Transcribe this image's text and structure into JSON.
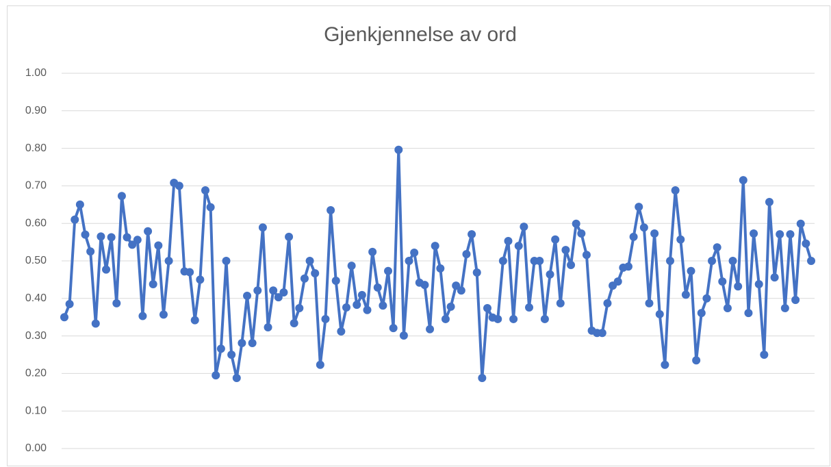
{
  "chart_data": {
    "type": "line",
    "title": "Gjenkjennelse av ord",
    "categories": [
      null,
      null,
      null,
      null,
      null,
      null,
      null,
      null,
      null,
      null,
      null,
      null,
      null,
      null,
      null,
      null,
      null,
      null,
      null,
      null,
      null,
      null,
      null,
      null,
      null,
      null,
      null,
      null,
      null,
      null,
      null,
      null,
      null,
      null,
      null,
      null,
      null,
      null,
      null,
      null,
      null,
      null,
      null,
      null,
      null,
      null,
      null,
      null,
      null,
      null,
      null,
      null,
      null,
      null,
      null,
      null,
      null,
      null,
      null,
      null,
      null,
      null,
      null,
      null,
      null,
      null,
      null,
      null,
      null,
      null,
      null,
      null,
      null,
      null,
      null,
      null,
      null,
      null,
      null,
      null,
      null,
      null,
      null,
      null,
      null,
      null,
      null,
      null,
      null,
      null,
      null,
      null,
      null,
      null,
      null,
      null,
      null,
      null,
      null,
      null,
      null,
      null,
      null,
      null,
      null,
      null,
      null,
      null,
      null,
      null,
      null,
      null,
      null,
      null,
      null,
      null,
      null,
      null,
      null,
      null,
      null,
      null,
      null,
      null,
      null,
      null,
      null,
      null,
      null,
      null,
      null,
      null,
      null,
      null,
      null,
      null,
      null,
      null,
      null,
      null,
      null,
      null,
      null,
      null
    ],
    "values": [
      0.35,
      0.385,
      0.61,
      0.65,
      0.57,
      0.525,
      0.333,
      0.565,
      0.477,
      0.563,
      0.387,
      0.673,
      0.563,
      0.543,
      0.556,
      0.353,
      0.579,
      0.438,
      0.541,
      0.357,
      0.5,
      0.708,
      0.7,
      0.472,
      0.47,
      0.342,
      0.45,
      0.688,
      0.643,
      0.195,
      0.266,
      0.5,
      0.25,
      0.188,
      0.281,
      0.407,
      0.281,
      0.421,
      0.589,
      0.323,
      0.421,
      0.403,
      0.416,
      0.564,
      0.334,
      0.374,
      0.453,
      0.5,
      0.467,
      0.223,
      0.345,
      0.635,
      0.447,
      0.312,
      0.376,
      0.487,
      0.383,
      0.409,
      0.369,
      0.524,
      0.429,
      0.381,
      0.473,
      0.321,
      0.796,
      0.301,
      0.5,
      0.522,
      0.442,
      0.436,
      0.318,
      0.54,
      0.48,
      0.345,
      0.378,
      0.434,
      0.421,
      0.518,
      0.571,
      0.469,
      0.188,
      0.374,
      0.349,
      0.345,
      0.5,
      0.553,
      0.345,
      0.54,
      0.591,
      0.376,
      0.5,
      0.5,
      0.345,
      0.464,
      0.557,
      0.387,
      0.529,
      0.489,
      0.599,
      0.573,
      0.516,
      0.314,
      0.308,
      0.308,
      0.387,
      0.434,
      0.445,
      0.482,
      0.485,
      0.564,
      0.644,
      0.589,
      0.387,
      0.573,
      0.358,
      0.223,
      0.5,
      0.688,
      0.557,
      0.41,
      0.473,
      0.235,
      0.361,
      0.4,
      0.5,
      0.536,
      0.445,
      0.374,
      0.5,
      0.432,
      0.715,
      0.361,
      0.573,
      0.438,
      0.25,
      0.657,
      0.456,
      0.571,
      0.374,
      0.571,
      0.396,
      0.599,
      0.546,
      0.5
    ],
    "color": "#4472c4",
    "ylim": [
      0,
      1
    ],
    "yticks": [
      {
        "value": 0,
        "label": "0.00"
      },
      {
        "value": 0.1,
        "label": "0.10"
      },
      {
        "value": 0.2,
        "label": "0.20"
      },
      {
        "value": 0.3,
        "label": "0.30"
      },
      {
        "value": 0.4,
        "label": "0.40"
      },
      {
        "value": 0.5,
        "label": "0.50"
      },
      {
        "value": 0.6,
        "label": "0.60"
      },
      {
        "value": 0.7,
        "label": "0.70"
      },
      {
        "value": 0.8,
        "label": "0.80"
      },
      {
        "value": 0.9,
        "label": "0.90"
      },
      {
        "value": 1,
        "label": "1.00"
      }
    ],
    "grid": true
  }
}
